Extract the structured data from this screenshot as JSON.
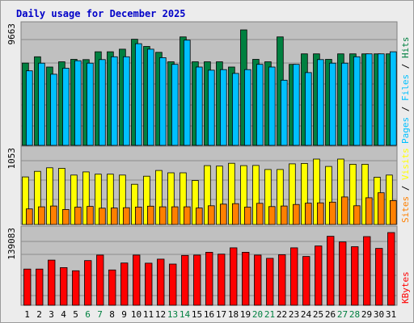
{
  "chart_data": {
    "title": "Daily usage for December 2025",
    "type": "bar",
    "days": [
      "1",
      "2",
      "3",
      "4",
      "5",
      "6",
      "7",
      "8",
      "9",
      "10",
      "11",
      "12",
      "13",
      "14",
      "15",
      "16",
      "17",
      "18",
      "19",
      "20",
      "21",
      "22",
      "23",
      "24",
      "25",
      "26",
      "27",
      "28",
      "29",
      "30",
      "31"
    ],
    "weekend_days": [
      "6",
      "7",
      "13",
      "14",
      "20",
      "21",
      "27",
      "28"
    ],
    "colors": {
      "hits": "#008040",
      "files": "#00c0ff",
      "pages": "#00c0ff",
      "visits": "#ffff00",
      "sites": "#ff8000",
      "kbytes": "#ff0000",
      "weekend_label": "#008040",
      "weekday_label": "#000000",
      "plot_background": "#c0c0c0",
      "title": "#0000c8"
    },
    "panels": [
      {
        "name": "hits-files",
        "ymax_label": "9663",
        "ymax": 9663,
        "series": [
          {
            "key": "hits",
            "values": [
              6888,
              7412,
              6556,
              6994,
              7194,
              7174,
              7829,
              7829,
              8047,
              8878,
              8278,
              7785,
              6994,
              9073,
              6994,
              6994,
              6994,
              6556,
              9663,
              7194,
              6994,
              9073,
              6777,
              7656,
              7656,
              7194,
              7656,
              7656,
              7656,
              7656,
              7656
            ]
          },
          {
            "key": "files",
            "values": [
              6237,
              6880,
              5953,
              6456,
              7081,
              6880,
              7175,
              7412,
              7412,
              8505,
              8047,
              7339,
              6777,
              8804,
              6556,
              6288,
              6337,
              6018,
              6337,
              6777,
              6556,
              5453,
              6777,
              6088,
              7175,
              6880,
              6880,
              7412,
              7656,
              7656,
              7829
            ]
          }
        ],
        "legend": [
          {
            "text": "Hits",
            "key": "hits"
          },
          {
            "text": "Files",
            "key": "files"
          },
          {
            "text": "Pages",
            "key": "pages"
          }
        ]
      },
      {
        "name": "visits-sites",
        "ymax_label": "1053",
        "ymax": 1053,
        "series": [
          {
            "key": "visits",
            "values": [
              766,
              855,
              912,
              905,
              795,
              846,
              810,
              810,
              795,
              648,
              777,
              870,
              832,
              832,
              708,
              948,
              940,
              986,
              948,
              950,
              885,
              885,
              976,
              983,
              1053,
              935,
              1053,
              970,
              970,
              760,
              795
            ]
          },
          {
            "key": "sites",
            "values": [
              251,
              285,
              298,
              242,
              279,
              291,
              262,
              265,
              271,
              281,
              295,
              285,
              285,
              285,
              265,
              301,
              328,
              335,
              279,
              340,
              289,
              298,
              323,
              343,
              348,
              360,
              443,
              301,
              430,
              511,
              385
            ]
          }
        ],
        "legend": [
          {
            "text": "Visits",
            "key": "visits"
          },
          {
            "text": "Sites",
            "key": "sites"
          }
        ]
      },
      {
        "name": "kbytes",
        "ymax_label": "139083",
        "ymax": 139083,
        "series": [
          {
            "key": "kbytes",
            "values": [
              69200,
              69200,
              86400,
              72000,
              66000,
              85500,
              95900,
              67500,
              80800,
              96000,
              80500,
              88300,
              78800,
              95300,
              96000,
              101300,
              97800,
              109900,
              101300,
              96000,
              89800,
              96800,
              109900,
              93400,
              113500,
              131900,
              121100,
              112100,
              131300,
              108800,
              139083
            ]
          }
        ],
        "legend": [
          {
            "text": "KBytes",
            "key": "kbytes"
          }
        ]
      }
    ]
  }
}
